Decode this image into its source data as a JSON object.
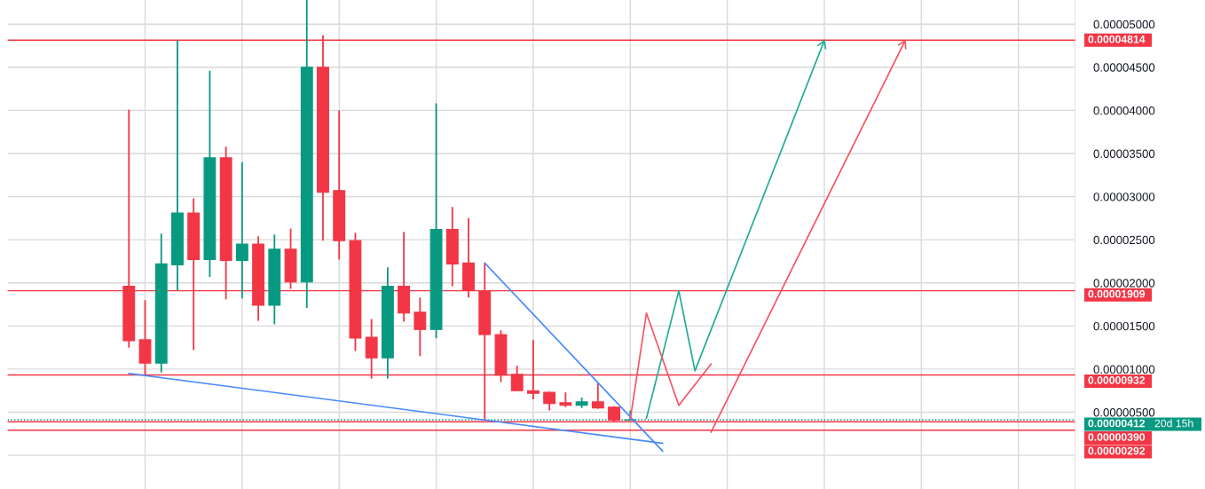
{
  "chart_data": {
    "type": "candlestick",
    "categories": [
      null,
      null,
      null,
      null,
      null,
      null,
      null,
      null,
      null,
      null,
      null,
      null,
      null,
      null,
      null,
      null,
      null,
      null,
      null,
      null,
      null,
      null,
      null,
      null,
      null,
      null,
      null,
      null,
      null,
      null,
      null,
      null,
      null,
      null,
      null,
      null,
      null,
      null,
      null,
      null,
      null,
      null,
      null,
      null,
      null,
      null,
      null,
      null,
      null,
      null,
      null,
      null,
      null,
      null,
      null,
      null,
      null,
      null,
      null,
      null,
      null,
      null,
      null,
      null,
      null,
      null
    ],
    "ohlc": [
      null,
      null,
      null,
      null,
      null,
      null,
      null,
      [
        1.96e-05,
        4.01e-05,
        1.25e-05,
        1.33e-05
      ],
      [
        1.34e-05,
        1.8e-05,
        9.3e-06,
        1.07e-05
      ],
      [
        1.07e-05,
        2.57e-05,
        9.6e-06,
        2.22e-05
      ],
      [
        2.21e-05,
        4.81e-05,
        1.91e-05,
        2.81e-05
      ],
      [
        2.81e-05,
        2.98e-05,
        1.22e-05,
        2.27e-05
      ],
      [
        2.27e-05,
        4.46e-05,
        2.07e-05,
        3.45e-05
      ],
      [
        3.45e-05,
        3.58e-05,
        1.81e-05,
        2.26e-05
      ],
      [
        2.26e-05,
        3.4e-05,
        1.82e-05,
        2.45e-05
      ],
      [
        2.45e-05,
        2.54e-05,
        1.56e-05,
        1.74e-05
      ],
      [
        1.74e-05,
        2.56e-05,
        1.52e-05,
        2.39e-05
      ],
      [
        2.39e-05,
        2.63e-05,
        1.93e-05,
        2.01e-05
      ],
      [
        2.01e-05,
        5.28e-05,
        1.71e-05,
        4.5e-05
      ],
      [
        4.5e-05,
        4.87e-05,
        2.49e-05,
        3.05e-05
      ],
      [
        3.07e-05,
        4e-05,
        2.27e-05,
        2.49e-05
      ],
      [
        2.49e-05,
        2.58e-05,
        1.21e-05,
        1.36e-05
      ],
      [
        1.37e-05,
        1.58e-05,
        8.9e-06,
        1.13e-05
      ],
      [
        1.13e-05,
        2.18e-05,
        8.9e-06,
        1.96e-05
      ],
      [
        1.96e-05,
        2.59e-05,
        1.55e-05,
        1.65e-05
      ],
      [
        1.66e-05,
        1.83e-05,
        1.15e-05,
        1.46e-05
      ],
      [
        1.46e-05,
        4.08e-05,
        1.36e-05,
        2.62e-05
      ],
      [
        2.62e-05,
        2.88e-05,
        1.96e-05,
        2.22e-05
      ],
      [
        2.23e-05,
        2.75e-05,
        1.83e-05,
        1.91e-05
      ],
      [
        1.91e-05,
        2.23e-05,
        4.1e-06,
        1.4e-05
      ],
      [
        1.4e-05,
        1.45e-05,
        8.5e-06,
        9.3e-06
      ],
      [
        9.4e-06,
        1.04e-05,
        7.5e-06,
        7.5e-06
      ],
      [
        7.5e-06,
        1.34e-05,
        6.5e-06,
        7.2e-06
      ],
      [
        7.3e-06,
        7.4e-06,
        5.2e-06,
        6e-06
      ],
      [
        6.1e-06,
        7.3e-06,
        5.6e-06,
        5.8e-06
      ],
      [
        5.8e-06,
        6.7e-06,
        5.5e-06,
        6.2e-06
      ],
      [
        6.2e-06,
        8.4e-06,
        5.4e-06,
        5.5e-06
      ],
      [
        5.6e-06,
        5.7e-06,
        3.9e-06,
        4.1e-06
      ],
      [
        4.1e-06,
        5.2e-06,
        4.1e-06,
        4.12e-06
      ],
      null,
      null,
      null,
      null,
      null,
      null,
      null,
      null,
      null,
      null,
      null,
      null,
      null,
      null,
      null,
      null,
      null,
      null,
      null,
      null,
      null,
      null,
      null,
      null,
      null,
      null,
      null
    ],
    "colors": [
      null,
      null,
      null,
      null,
      null,
      null,
      null,
      "#f23645",
      "#f23645",
      "#089981",
      "#089981",
      "#f23645",
      "#089981",
      "#f23645",
      "#089981",
      "#f23645",
      "#089981",
      "#f23645",
      "#089981",
      "#f23645",
      "#f23645",
      "#f23645",
      "#f23645",
      "#089981",
      "#f23645",
      "#f23645",
      "#089981",
      "#f23645",
      "#f23645",
      "#f23645",
      "#f23645",
      "#f23645",
      "#f23645",
      "#f23645",
      "#f23645",
      "#089981",
      "#f23645",
      "#f23645",
      "#089981",
      null,
      null,
      null,
      null,
      null,
      null,
      null,
      null,
      null,
      null,
      null,
      null,
      null,
      null,
      null,
      null,
      null,
      null,
      null,
      null,
      null,
      null,
      null,
      null,
      null,
      null,
      null
    ],
    "series": [
      {
        "type": "line",
        "color": "#448aff",
        "values": [
          null,
          null,
          null,
          null,
          null,
          null,
          null,
          9.5e-06,
          null,
          null,
          null,
          null,
          null,
          null,
          null,
          null,
          null,
          null,
          null,
          null,
          null,
          null,
          null,
          null,
          null,
          null,
          null,
          null,
          null,
          null,
          null,
          null,
          null,
          null,
          null,
          null,
          null,
          null,
          null,
          null,
          1.4e-06,
          null,
          null,
          null,
          null,
          null,
          null,
          null,
          null,
          null,
          null,
          null,
          null,
          null,
          null,
          null,
          null,
          null,
          null,
          null,
          null,
          null,
          null,
          null,
          null,
          null
        ]
      },
      {
        "type": "line",
        "color": "#448aff",
        "values": [
          null,
          null,
          null,
          null,
          null,
          null,
          null,
          null,
          null,
          null,
          null,
          null,
          null,
          null,
          null,
          null,
          null,
          null,
          null,
          null,
          null,
          null,
          null,
          null,
          null,
          null,
          null,
          null,
          null,
          2.23e-05,
          null,
          null,
          null,
          null,
          null,
          null,
          null,
          null,
          null,
          null,
          5e-07,
          null,
          null,
          null,
          null,
          null,
          null,
          null,
          null,
          null,
          null,
          null,
          null,
          null,
          null,
          null,
          null,
          null,
          null,
          null,
          null,
          null,
          null,
          null,
          null,
          null
        ]
      },
      {
        "type": "line",
        "color": "#22ab94",
        "values": [
          null,
          null,
          null,
          null,
          null,
          null,
          null,
          null,
          null,
          null,
          null,
          null,
          null,
          null,
          null,
          null,
          null,
          null,
          null,
          null,
          null,
          null,
          null,
          null,
          null,
          null,
          null,
          null,
          null,
          null,
          null,
          null,
          null,
          null,
          null,
          null,
          null,
          null,
          null,
          4.3e-06,
          null,
          1.91e-05,
          9.8e-06,
          null,
          null,
          null,
          null,
          null,
          null,
          null,
          4.81e-05,
          null,
          null,
          null,
          null,
          null,
          null,
          null,
          null,
          null,
          null,
          null,
          null,
          null,
          null,
          null
        ]
      },
      {
        "type": "line",
        "color": "#f7525f",
        "values": [
          null,
          null,
          null,
          null,
          null,
          null,
          null,
          null,
          null,
          null,
          null,
          null,
          null,
          null,
          null,
          null,
          null,
          null,
          null,
          null,
          null,
          null,
          null,
          null,
          null,
          null,
          null,
          null,
          null,
          null,
          null,
          null,
          null,
          null,
          null,
          null,
          null,
          null,
          4.2e-06,
          1.65e-05,
          null,
          5.8e-06,
          null,
          1.06e-05,
          null,
          null,
          null,
          null,
          null,
          null,
          null,
          null,
          null,
          null,
          null,
          null,
          null,
          null,
          null,
          null,
          null,
          null,
          null,
          null,
          null,
          null
        ]
      },
      {
        "type": "line",
        "color": "#f7525f",
        "values": [
          null,
          null,
          null,
          null,
          null,
          null,
          null,
          null,
          null,
          null,
          null,
          null,
          null,
          null,
          null,
          null,
          null,
          null,
          null,
          null,
          null,
          null,
          null,
          null,
          null,
          null,
          null,
          null,
          null,
          null,
          null,
          null,
          null,
          null,
          null,
          null,
          null,
          null,
          null,
          null,
          null,
          null,
          null,
          2.7e-06,
          null,
          null,
          null,
          null,
          null,
          null,
          null,
          null,
          null,
          null,
          null,
          4.81e-05,
          null,
          null,
          null,
          null,
          null,
          null,
          null,
          null,
          null,
          null
        ]
      }
    ],
    "ref_lines": [
      {
        "axis": "y",
        "value": 4.814e-05,
        "label": "0.00004814",
        "color": "#f23645"
      },
      {
        "axis": "y",
        "value": 1.909e-05,
        "label": "0.00001909",
        "color": "#f23645"
      },
      {
        "axis": "y",
        "value": 9.32e-06,
        "label": "0.00000932",
        "color": "#f23645"
      },
      {
        "axis": "y",
        "value": 4.12e-06,
        "label": "0.00000412",
        "color": "#089981",
        "line_style": "dotted"
      },
      {
        "axis": "y",
        "value": 3.9e-06,
        "label": "0.00000390",
        "color": "#f23645"
      },
      {
        "axis": "y",
        "value": 2.92e-06,
        "label": "0.00000292",
        "color": "#f23645"
      }
    ],
    "annotations": [
      "20d 15h"
    ],
    "ylim": [
      -3.9e-06,
      5.28e-05
    ],
    "yticks": [
      {
        "value": 0,
        "label": null
      },
      {
        "value": 5e-06,
        "label": "0.00000500"
      },
      {
        "value": 1e-05,
        "label": "0.00001000"
      },
      {
        "value": 1.5e-05,
        "label": "0.00001500"
      },
      {
        "value": 2e-05,
        "label": "0.00002000"
      },
      {
        "value": 2.5e-05,
        "label": "0.00002500"
      },
      {
        "value": 3e-05,
        "label": "0.00003000"
      },
      {
        "value": 3.5e-05,
        "label": "0.00003500"
      },
      {
        "value": 4e-05,
        "label": "0.00004000"
      },
      {
        "value": 4.5e-05,
        "label": "0.00004500"
      },
      {
        "value": 5e-05,
        "label": "0.00005000"
      }
    ],
    "grid": true
  }
}
